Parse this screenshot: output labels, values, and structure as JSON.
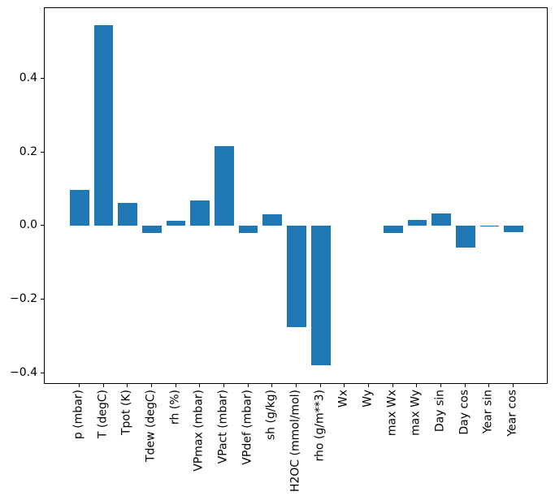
{
  "figure": {
    "background": "#ffffff"
  },
  "chart_data": {
    "type": "bar",
    "title": "",
    "xlabel": "",
    "ylabel": "",
    "bar_color": "#1f77b4",
    "grid": false,
    "legend": null,
    "categories": [
      "p (mbar)",
      "T (degC)",
      "Tpot (K)",
      "Tdew (degC)",
      "rh (%)",
      "VPmax (mbar)",
      "VPact (mbar)",
      "VPdef (mbar)",
      "sh (g/kg)",
      "H2OC (mmol/mol)",
      "rho (g/m**3)",
      "Wx",
      "Wy",
      "max Wx",
      "max Wy",
      "Day sin",
      "Day cos",
      "Year sin",
      "Year cos"
    ],
    "values": [
      0.098,
      0.547,
      0.063,
      -0.019,
      0.014,
      0.07,
      0.218,
      -0.019,
      0.032,
      -0.275,
      -0.38,
      0.0,
      0.0,
      -0.02,
      0.016,
      0.034,
      -0.059,
      0.002,
      -0.017
    ],
    "yticks": {
      "values": [
        0.4,
        0.2,
        0.0,
        -0.2,
        -0.4
      ],
      "labels": [
        "0.4",
        "0.2",
        "0.0",
        "−0.2",
        "−0.4"
      ]
    },
    "ylim": [
      -0.432,
      0.593
    ],
    "bar_width_fraction": 0.8
  }
}
